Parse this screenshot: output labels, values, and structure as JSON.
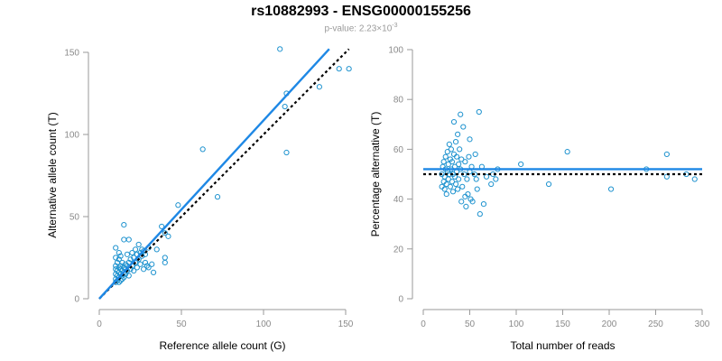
{
  "title": "rs10882993 - ENSG00000155256",
  "subtitle": {
    "prefix": "p-value: 2.23×10",
    "exponent": "-3"
  },
  "colors": {
    "points": "#1f93cf",
    "fit_line": "#1e88e5",
    "reference_line": "#000000",
    "axis": "#9a9a9a"
  },
  "chart_data": [
    {
      "type": "scatter",
      "xlabel": "Reference allele count (G)",
      "ylabel": "Alternative allele count (T)",
      "xlim": [
        0,
        150
      ],
      "ylim": [
        0,
        150
      ],
      "xticks": [
        "0",
        "50",
        "100",
        "150"
      ],
      "yticks": [
        "0",
        "50",
        "100",
        "150"
      ],
      "grid": false,
      "points": [
        [
          10,
          10
        ],
        [
          10,
          12
        ],
        [
          10,
          15
        ],
        [
          10,
          18
        ],
        [
          10,
          20
        ],
        [
          10,
          25
        ],
        [
          10,
          31
        ],
        [
          11,
          11
        ],
        [
          11,
          14
        ],
        [
          11,
          17
        ],
        [
          11,
          22
        ],
        [
          12,
          10
        ],
        [
          12,
          13
        ],
        [
          12,
          16
        ],
        [
          12,
          19
        ],
        [
          12,
          24
        ],
        [
          12,
          28
        ],
        [
          13,
          11
        ],
        [
          13,
          15
        ],
        [
          13,
          18
        ],
        [
          13,
          20
        ],
        [
          13,
          26
        ],
        [
          14,
          12
        ],
        [
          14,
          14
        ],
        [
          14,
          17
        ],
        [
          14,
          22
        ],
        [
          15,
          13
        ],
        [
          15,
          16
        ],
        [
          15,
          19
        ],
        [
          15,
          36
        ],
        [
          15,
          45
        ],
        [
          16,
          15
        ],
        [
          16,
          18
        ],
        [
          16,
          21
        ],
        [
          17,
          17
        ],
        [
          17,
          20
        ],
        [
          17,
          27
        ],
        [
          18,
          14
        ],
        [
          18,
          22
        ],
        [
          18,
          36
        ],
        [
          19,
          18
        ],
        [
          19,
          24
        ],
        [
          20,
          20
        ],
        [
          20,
          28
        ],
        [
          21,
          17
        ],
        [
          21,
          25
        ],
        [
          22,
          22
        ],
        [
          22,
          30
        ],
        [
          23,
          19
        ],
        [
          23,
          27
        ],
        [
          24,
          24
        ],
        [
          24,
          33
        ],
        [
          25,
          21
        ],
        [
          25,
          28
        ],
        [
          26,
          26
        ],
        [
          26,
          30
        ],
        [
          27,
          18
        ],
        [
          27,
          29
        ],
        [
          28,
          22
        ],
        [
          28,
          27
        ],
        [
          29,
          20
        ],
        [
          30,
          19
        ],
        [
          30,
          31
        ],
        [
          32,
          21
        ],
        [
          33,
          16
        ],
        [
          35,
          30
        ],
        [
          38,
          44
        ],
        [
          40,
          22
        ],
        [
          40,
          25
        ],
        [
          42,
          38
        ],
        [
          40,
          40
        ],
        [
          48,
          57
        ],
        [
          63,
          91
        ],
        [
          72,
          62
        ],
        [
          110,
          152
        ],
        [
          113,
          117
        ],
        [
          114,
          125
        ],
        [
          114,
          89
        ],
        [
          134,
          129
        ],
        [
          146,
          140
        ],
        [
          152,
          140
        ]
      ],
      "fit_line": [
        [
          0,
          0
        ],
        [
          140,
          152
        ]
      ],
      "reference_line": [
        [
          0,
          0
        ],
        [
          152,
          152
        ]
      ]
    },
    {
      "type": "scatter",
      "xlabel": "Total number of reads",
      "ylabel": "Percentage alternative (T)",
      "xlim": [
        0,
        300
      ],
      "ylim": [
        0,
        100
      ],
      "xticks": [
        "0",
        "50",
        "100",
        "150",
        "200",
        "250",
        "300"
      ],
      "yticks": [
        "0",
        "20",
        "40",
        "60",
        "80",
        "100"
      ],
      "grid": false,
      "points": [
        [
          20,
          45
        ],
        [
          20,
          50
        ],
        [
          21,
          53
        ],
        [
          22,
          47
        ],
        [
          22,
          55
        ],
        [
          23,
          44
        ],
        [
          23,
          49
        ],
        [
          24,
          52
        ],
        [
          24,
          57
        ],
        [
          25,
          46
        ],
        [
          25,
          42
        ],
        [
          26,
          51
        ],
        [
          26,
          59
        ],
        [
          27,
          48
        ],
        [
          27,
          54
        ],
        [
          28,
          50
        ],
        [
          28,
          62
        ],
        [
          29,
          45
        ],
        [
          29,
          56
        ],
        [
          30,
          52
        ],
        [
          30,
          60
        ],
        [
          31,
          47
        ],
        [
          31,
          55
        ],
        [
          32,
          43
        ],
        [
          32,
          50
        ],
        [
          33,
          58
        ],
        [
          33,
          71
        ],
        [
          34,
          49
        ],
        [
          34,
          53
        ],
        [
          35,
          46
        ],
        [
          35,
          63
        ],
        [
          36,
          57
        ],
        [
          36,
          51
        ],
        [
          37,
          66
        ],
        [
          37,
          44
        ],
        [
          38,
          54
        ],
        [
          38,
          48
        ],
        [
          39,
          60
        ],
        [
          40,
          74
        ],
        [
          40,
          52
        ],
        [
          41,
          39
        ],
        [
          41,
          56
        ],
        [
          42,
          45
        ],
        [
          43,
          69
        ],
        [
          44,
          50
        ],
        [
          45,
          41
        ],
        [
          45,
          55
        ],
        [
          46,
          37
        ],
        [
          47,
          48
        ],
        [
          48,
          42
        ],
        [
          49,
          57
        ],
        [
          50,
          51
        ],
        [
          50,
          64
        ],
        [
          51,
          40
        ],
        [
          52,
          53
        ],
        [
          53,
          39
        ],
        [
          55,
          50
        ],
        [
          56,
          58
        ],
        [
          57,
          48
        ],
        [
          58,
          44
        ],
        [
          60,
          75
        ],
        [
          61,
          34
        ],
        [
          63,
          53
        ],
        [
          65,
          38
        ],
        [
          68,
          49
        ],
        [
          73,
          46
        ],
        [
          75,
          50
        ],
        [
          78,
          48
        ],
        [
          80,
          52
        ],
        [
          105,
          54
        ],
        [
          135,
          46
        ],
        [
          155,
          59
        ],
        [
          202,
          44
        ],
        [
          240,
          52
        ],
        [
          262,
          58
        ],
        [
          262,
          49
        ],
        [
          283,
          50
        ],
        [
          292,
          48
        ]
      ],
      "fit_line": [
        [
          0,
          52
        ],
        [
          300,
          52
        ]
      ],
      "reference_line": [
        [
          0,
          50
        ],
        [
          300,
          50
        ]
      ]
    }
  ]
}
